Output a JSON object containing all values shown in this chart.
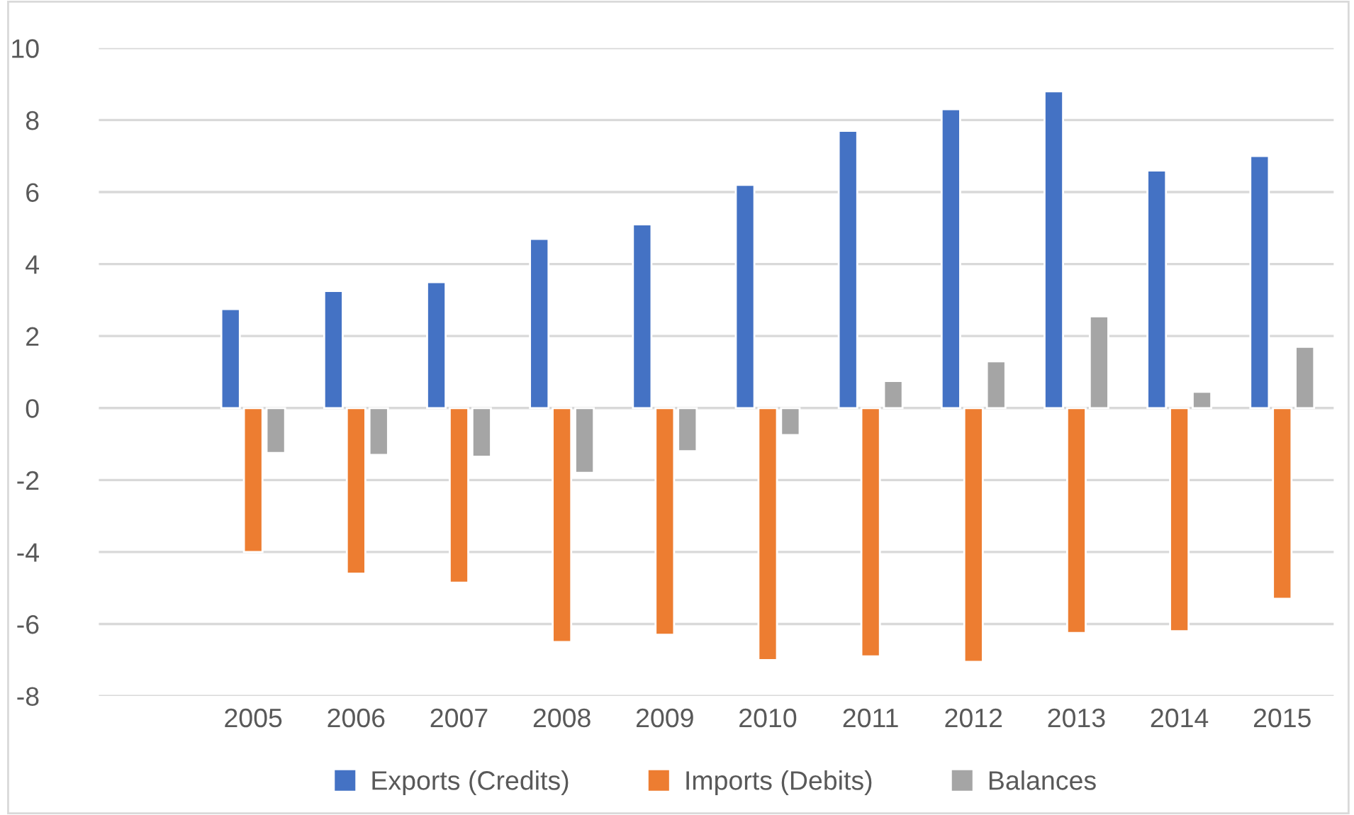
{
  "chart_data": {
    "type": "bar",
    "categories": [
      null,
      "2005",
      "2006",
      "2007",
      "2008",
      "2009",
      "2010",
      "2011",
      "2012",
      "2013",
      "2014",
      "2015"
    ],
    "series": [
      {
        "name": "Exports (Credits)",
        "color": "#4472c4",
        "values": [
          null,
          2.75,
          3.25,
          3.5,
          4.7,
          5.1,
          6.2,
          7.7,
          8.3,
          8.8,
          6.6,
          7.0
        ]
      },
      {
        "name": "Imports (Debits)",
        "color": "#ed7d31",
        "values": [
          null,
          -4.0,
          -4.6,
          -4.85,
          -6.5,
          -6.3,
          -7.0,
          -6.9,
          -7.05,
          -6.25,
          -6.2,
          -5.3
        ]
      },
      {
        "name": "Balances",
        "color": "#a5a5a5",
        "values": [
          null,
          -1.25,
          -1.3,
          -1.35,
          -1.8,
          -1.2,
          -0.75,
          0.75,
          1.3,
          2.55,
          0.45,
          1.7
        ]
      }
    ],
    "ylim": [
      -8,
      10
    ],
    "yticks": [
      -8,
      -6,
      -4,
      -2,
      0,
      2,
      4,
      6,
      8,
      10
    ],
    "grid": "y",
    "legend": "bottom"
  }
}
